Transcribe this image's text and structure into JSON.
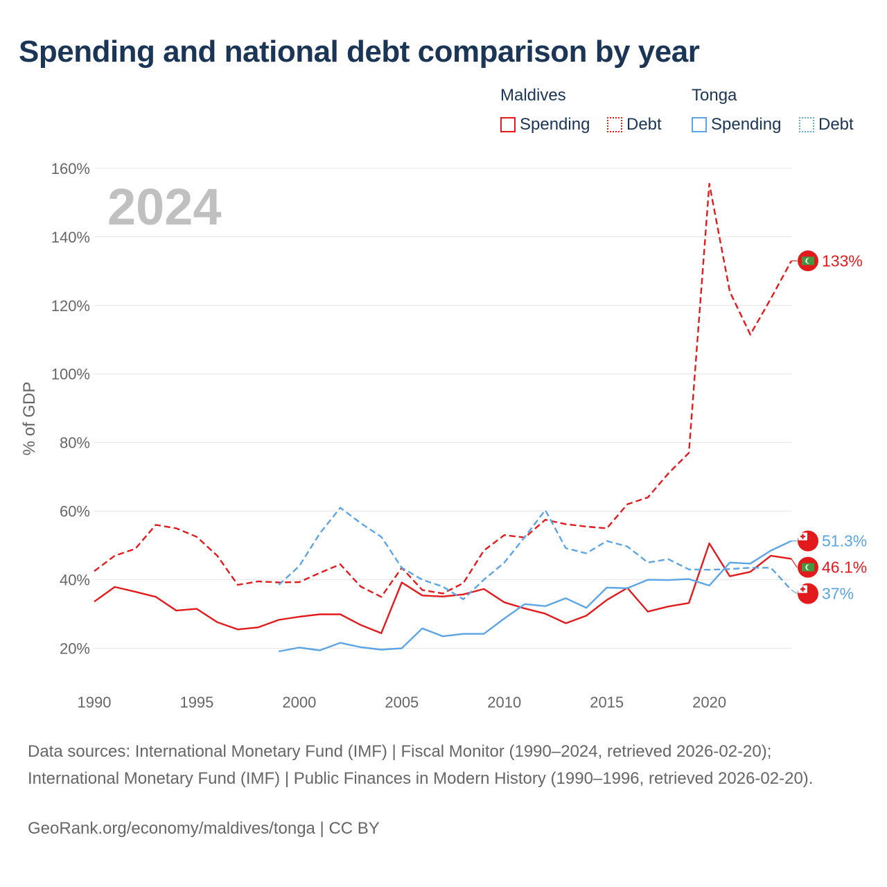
{
  "title": "Spending and national debt comparison by year",
  "legend": {
    "groups": [
      {
        "name": "Maldives",
        "color": "#e31a1c",
        "items": [
          {
            "label": "Spending",
            "style": "solid"
          },
          {
            "label": "Debt",
            "style": "dotted"
          }
        ]
      },
      {
        "name": "Tonga",
        "color": "#5ba4e5",
        "items": [
          {
            "label": "Spending",
            "style": "solid"
          },
          {
            "label": "Debt",
            "style": "dotted"
          }
        ]
      }
    ]
  },
  "year_label": "2024",
  "footer": {
    "sources": "Data sources: International Monetary Fund (IMF) | Fiscal Monitor (1990–2024, retrieved 2026-02-20); International Monetary Fund (IMF) | Public Finances in Modern History (1990–1996, retrieved 2026-02-20).",
    "credit": "GeoRank.org/economy/maldives/tonga | CC BY"
  },
  "chart_data": {
    "type": "line",
    "ylabel": "% of GDP",
    "xlabel": "",
    "xlim": [
      1990,
      2024
    ],
    "ylim": [
      10,
      163
    ],
    "y_ticks": [
      20,
      40,
      60,
      80,
      100,
      120,
      140,
      160
    ],
    "y_tick_labels": [
      "20%",
      "40%",
      "60%",
      "80%",
      "100%",
      "120%",
      "140%",
      "160%"
    ],
    "x_ticks": [
      1990,
      1995,
      2000,
      2005,
      2010,
      2015,
      2020
    ],
    "x_tick_labels": [
      "1990",
      "1995",
      "2000",
      "2005",
      "2010",
      "2015",
      "2020"
    ],
    "grid": true,
    "series": [
      {
        "name": "Maldives Debt",
        "country": "Maldives",
        "metric": "Debt",
        "color": "#e31a1c",
        "dashed": true,
        "x": [
          1990,
          1991,
          1992,
          1993,
          1994,
          1995,
          1996,
          1997,
          1998,
          1999,
          2000,
          2001,
          2002,
          2003,
          2004,
          2005,
          2006,
          2007,
          2008,
          2009,
          2010,
          2011,
          2012,
          2013,
          2014,
          2015,
          2016,
          2017,
          2018,
          2019,
          2020,
          2021,
          2022,
          2023,
          2024
        ],
        "values": [
          42.5,
          47,
          49,
          56,
          55,
          52.5,
          47,
          38.5,
          39.5,
          39.2,
          39.3,
          42,
          44.5,
          38,
          35,
          43.5,
          37,
          36,
          39,
          48.5,
          53,
          52.3,
          57.5,
          56.2,
          55.5,
          55,
          62,
          64,
          71,
          77,
          155.5,
          124,
          111.5,
          122,
          133
        ],
        "end_label": "133%"
      },
      {
        "name": "Maldives Spending",
        "country": "Maldives",
        "metric": "Spending",
        "color": "#e31a1c",
        "dashed": false,
        "x": [
          1990,
          1991,
          1992,
          1993,
          1994,
          1995,
          1996,
          1997,
          1998,
          1999,
          2000,
          2001,
          2002,
          2003,
          2004,
          2005,
          2006,
          2007,
          2008,
          2009,
          2010,
          2011,
          2012,
          2013,
          2014,
          2015,
          2016,
          2017,
          2018,
          2019,
          2020,
          2021,
          2022,
          2023,
          2024
        ],
        "values": [
          33.6,
          37.9,
          36.5,
          35,
          31,
          31.5,
          27.6,
          25.5,
          26.1,
          28.3,
          29.2,
          29.9,
          29.9,
          26.8,
          24.4,
          39.2,
          35.4,
          35.1,
          35.7,
          37.3,
          33.4,
          31.6,
          30.1,
          27.3,
          29.5,
          34.1,
          37.6,
          30.7,
          32.2,
          33.2,
          50.6,
          41,
          42.3,
          47,
          46.1
        ],
        "end_label": "46.1%"
      },
      {
        "name": "Tonga Debt",
        "country": "Tonga",
        "metric": "Debt",
        "color": "#5ba4e5",
        "dashed": true,
        "x": [
          1999,
          2000,
          2001,
          2002,
          2003,
          2004,
          2005,
          2006,
          2007,
          2008,
          2009,
          2010,
          2011,
          2012,
          2013,
          2014,
          2015,
          2016,
          2017,
          2018,
          2019,
          2020,
          2021,
          2022,
          2023,
          2024
        ],
        "values": [
          38.5,
          44,
          53.5,
          61,
          56.5,
          52.5,
          43.5,
          40,
          38,
          34.3,
          40,
          45,
          52.5,
          60.3,
          49.2,
          47.7,
          51.3,
          49.7,
          45,
          46,
          43,
          42.9,
          43.1,
          43.5,
          43.5,
          37
        ],
        "end_label": "37%"
      },
      {
        "name": "Tonga Spending",
        "country": "Tonga",
        "metric": "Spending",
        "color": "#5ba4e5",
        "dashed": false,
        "x": [
          1999,
          2000,
          2001,
          2002,
          2003,
          2004,
          2005,
          2006,
          2007,
          2008,
          2009,
          2010,
          2011,
          2012,
          2013,
          2014,
          2015,
          2016,
          2017,
          2018,
          2019,
          2020,
          2021,
          2022,
          2023,
          2024
        ],
        "values": [
          19.1,
          20.2,
          19.4,
          21.6,
          20.3,
          19.6,
          20,
          25.8,
          23.5,
          24.2,
          24.2,
          28.7,
          32.9,
          32.3,
          34.6,
          31.8,
          37.7,
          37.5,
          40,
          39.9,
          40.2,
          38.3,
          45,
          44.7,
          48.5,
          51.3
        ],
        "end_label": "51.3%"
      }
    ]
  }
}
